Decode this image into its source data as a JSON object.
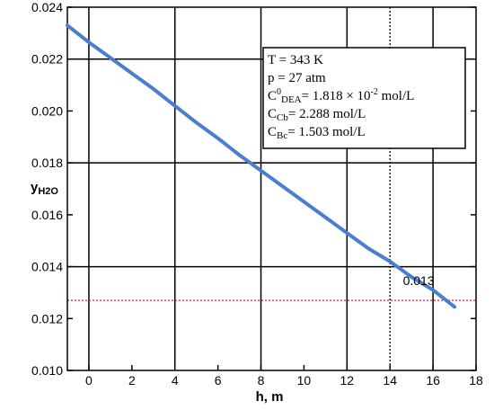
{
  "chart_data": {
    "type": "line",
    "xlabel": "h, m",
    "ylabel_main": "y",
    "ylabel_sub": "H2O",
    "xlim": [
      -1,
      18
    ],
    "ylim": [
      0.01,
      0.024
    ],
    "x_ticks": [
      0,
      2,
      4,
      6,
      8,
      10,
      12,
      14,
      16,
      18
    ],
    "x_tick_labels": [
      "0",
      "2",
      "4",
      "6",
      "8",
      "10",
      "12",
      "14",
      "16",
      "18"
    ],
    "y_ticks": [
      0.01,
      0.012,
      0.014,
      0.016,
      0.018,
      0.02,
      0.022,
      0.024
    ],
    "y_tick_labels": [
      "0.010",
      "0.012",
      "0.014",
      "0.016",
      "0.018",
      "0.020",
      "0.022",
      "0.024"
    ],
    "grid_x": [
      0,
      4,
      8,
      12,
      16
    ],
    "grid_y": [
      0.014,
      0.018,
      0.022
    ],
    "series": [
      {
        "color": "#4a7fd0",
        "x": [
          -1,
          0,
          1,
          2,
          3,
          4,
          5,
          6,
          7,
          8,
          9,
          10,
          11,
          12,
          13,
          14,
          15,
          16,
          17
        ],
        "y": [
          0.0233,
          0.02265,
          0.02205,
          0.02145,
          0.02085,
          0.0202,
          0.01955,
          0.01895,
          0.0183,
          0.0177,
          0.0171,
          0.0165,
          0.0159,
          0.0153,
          0.0147,
          0.0142,
          0.0136,
          0.0131,
          0.01245
        ]
      }
    ],
    "reference_lines": [
      {
        "orientation": "horizontal",
        "value": 0.0127,
        "color": "#e03030",
        "style": "dotted"
      },
      {
        "orientation": "vertical",
        "value": 14,
        "color": "#000000",
        "style": "dotted"
      }
    ],
    "annotations": [
      {
        "text": "0.013",
        "x": 14.6,
        "y": 0.0133
      }
    ],
    "legend": {
      "placement": "top-right",
      "lines": [
        {
          "main": "T = 343 K"
        },
        {
          "main": "p = 27 atm"
        },
        {
          "pre": "C",
          "sup": "0",
          "sub": "DEA",
          "post": "= 1.818 × 10",
          "sup2": "-2",
          "post2": " mol/L"
        },
        {
          "pre": "C",
          "sub": "Cb",
          "post": "= 2.288 mol/L"
        },
        {
          "pre": "C",
          "sub": "Bc",
          "post": "= 1.503 mol/L"
        }
      ]
    }
  }
}
